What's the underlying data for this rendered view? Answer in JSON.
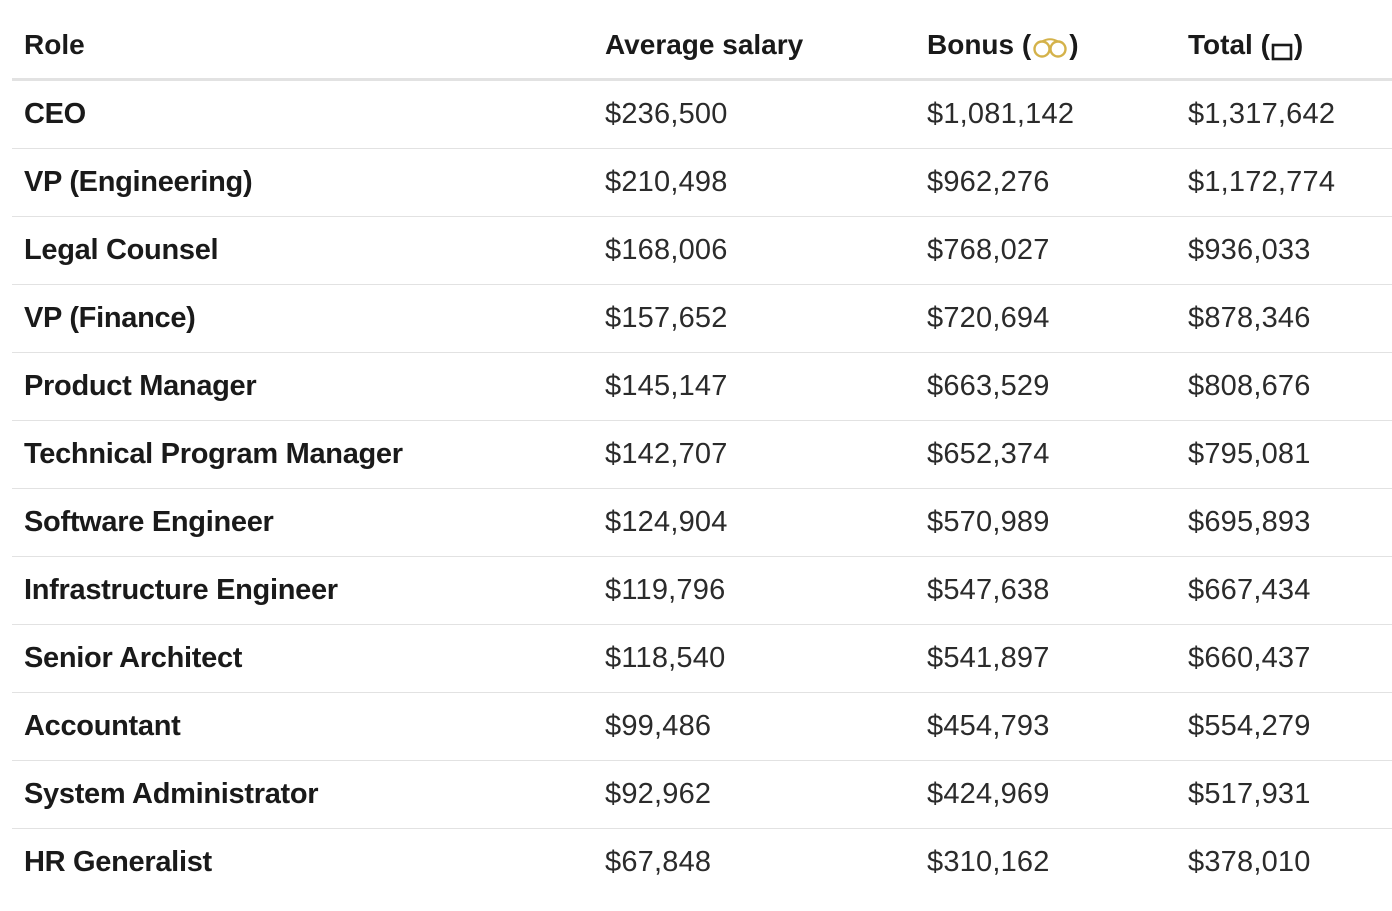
{
  "table": {
    "headers": {
      "role": "Role",
      "avg_salary": "Average salary",
      "bonus_prefix": "Bonus (",
      "bonus_suffix": ")",
      "total_prefix": "Total (",
      "total_suffix": ")"
    },
    "icons": {
      "bonus_icon": "handcuffs-icon",
      "total_icon": "box-icon",
      "bonus_icon_color": "#d4b24a"
    },
    "rows": [
      {
        "role": "CEO",
        "salary": "$236,500",
        "bonus": "$1,081,142",
        "total": "$1,317,642"
      },
      {
        "role": "VP (Engineering)",
        "salary": "$210,498",
        "bonus": "$962,276",
        "total": "$1,172,774"
      },
      {
        "role": "Legal Counsel",
        "salary": "$168,006",
        "bonus": "$768,027",
        "total": "$936,033"
      },
      {
        "role": "VP (Finance)",
        "salary": "$157,652",
        "bonus": "$720,694",
        "total": "$878,346"
      },
      {
        "role": "Product Manager",
        "salary": "$145,147",
        "bonus": "$663,529",
        "total": "$808,676"
      },
      {
        "role": "Technical Program Manager",
        "salary": "$142,707",
        "bonus": "$652,374",
        "total": "$795,081"
      },
      {
        "role": "Software Engineer",
        "salary": "$124,904",
        "bonus": "$570,989",
        "total": "$695,893"
      },
      {
        "role": "Infrastructure Engineer",
        "salary": "$119,796",
        "bonus": "$547,638",
        "total": "$667,434"
      },
      {
        "role": "Senior Architect",
        "salary": "$118,540",
        "bonus": "$541,897",
        "total": "$660,437"
      },
      {
        "role": "Accountant",
        "salary": "$99,486",
        "bonus": "$454,793",
        "total": "$554,279"
      },
      {
        "role": "System Administrator",
        "salary": "$92,962",
        "bonus": "$424,969",
        "total": "$517,931"
      },
      {
        "role": "HR Generalist",
        "salary": "$67,848",
        "bonus": "$310,162",
        "total": "$378,010"
      }
    ]
  }
}
